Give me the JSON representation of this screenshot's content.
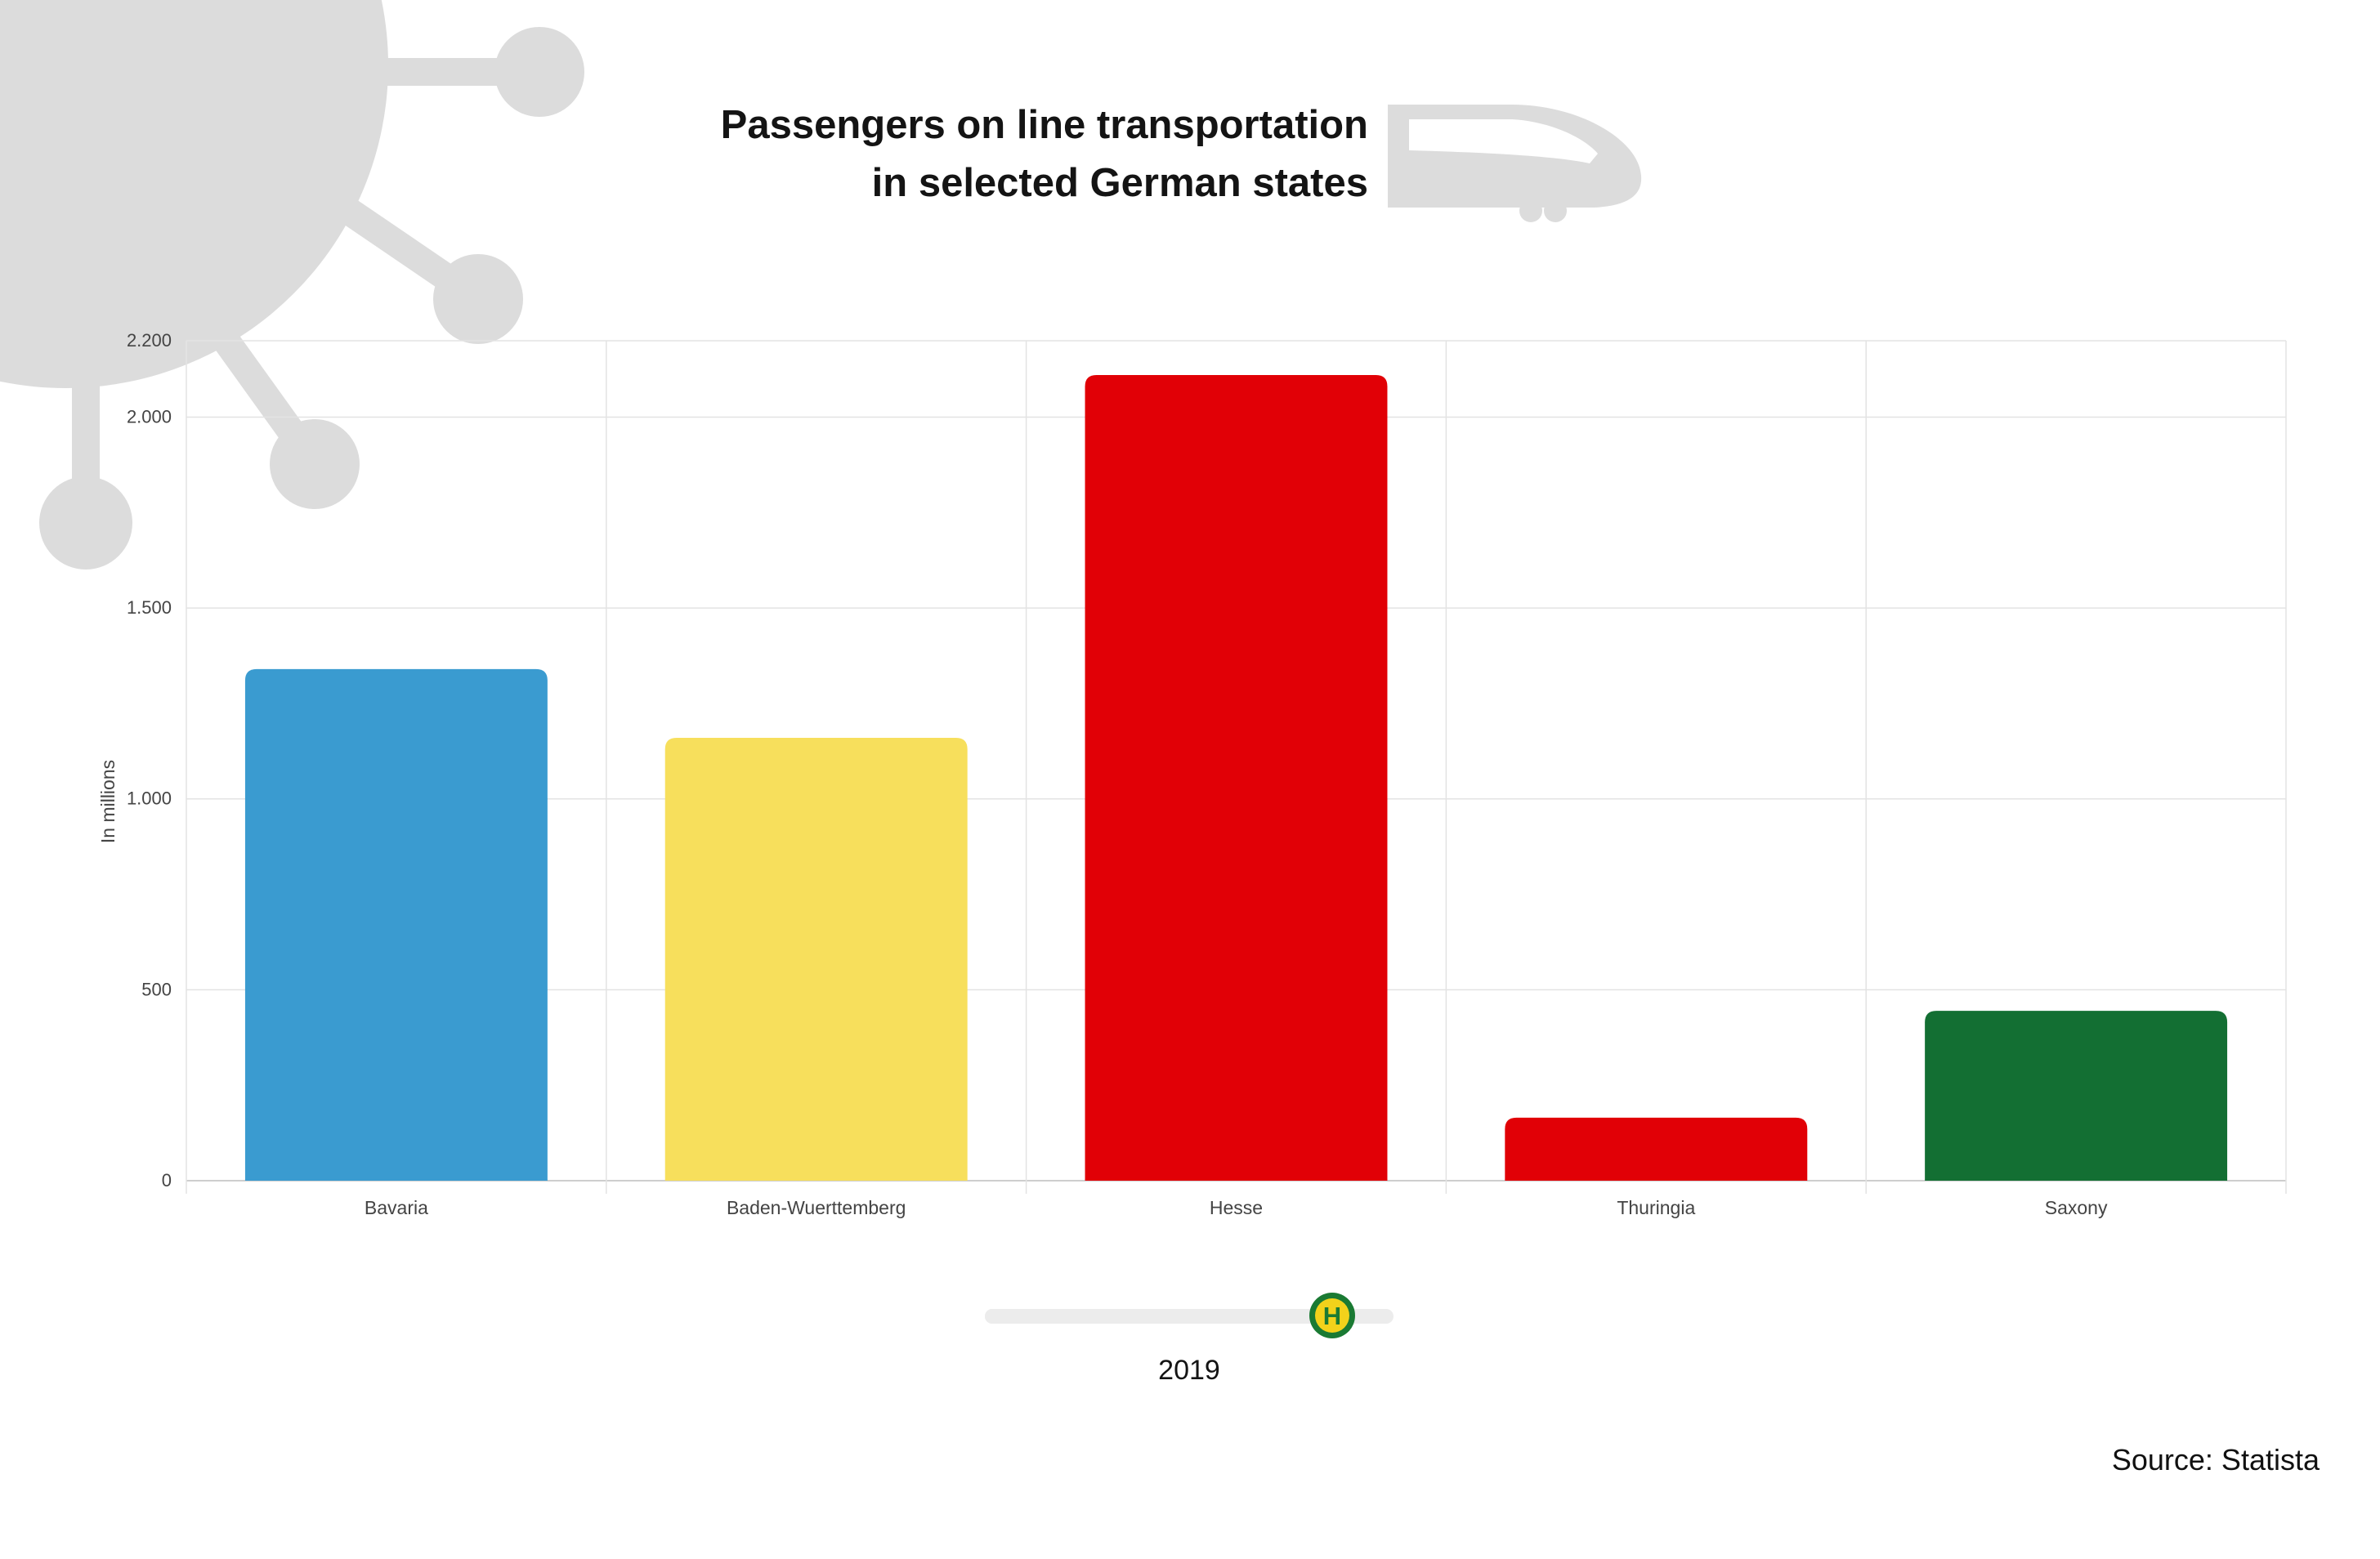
{
  "title_lines": [
    "Passengers on line transportation",
    "in selected German states"
  ],
  "source": "Source: Statista",
  "slider": {
    "year": "2019",
    "position": 0.85,
    "thumb_letter": "H",
    "thumb_colors": {
      "ring": "#1a7a33",
      "fill": "#f2d21b",
      "letter": "#1a7a33"
    }
  },
  "chart_data": {
    "type": "bar",
    "title": "Passengers on line transportation in selected German states",
    "categories": [
      "Bavaria",
      "Baden-Wuerttemberg",
      "Hesse",
      "Thuringia",
      "Saxony"
    ],
    "values": [
      1340,
      1160,
      2110,
      165,
      445
    ],
    "colors": [
      "#3a9bd0",
      "#f7df5c",
      "#e10006",
      "#e10006",
      "#136f33"
    ],
    "ylabel": "In millions",
    "xlabel": "",
    "ylim": [
      0,
      2200
    ],
    "yticks": [
      {
        "value": 0,
        "label": "0"
      },
      {
        "value": 500,
        "label": "500"
      },
      {
        "value": 1000,
        "label": "1.000"
      },
      {
        "value": 1500,
        "label": "1.500"
      },
      {
        "value": 2000,
        "label": "2.000"
      },
      {
        "value": 2200,
        "label": "2.200"
      }
    ],
    "grid": true,
    "legend": "none"
  },
  "decorations": {
    "virus_icon": "virus-icon",
    "train_icon": "train-icon",
    "icon_color": "#dcdcdc"
  }
}
